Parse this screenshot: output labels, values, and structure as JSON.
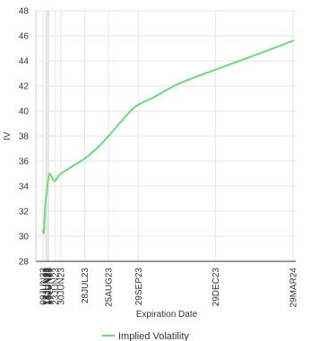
{
  "chart_data": {
    "type": "line",
    "xlabel": "Expiration Date",
    "ylabel": "IV",
    "ylim": [
      28,
      48
    ],
    "yticks": [
      28,
      30,
      32,
      34,
      36,
      38,
      40,
      42,
      44,
      46,
      48
    ],
    "grid": true,
    "legend_position": "bottom-center",
    "x_tick_labels": [
      {
        "label": "09JUN23",
        "date": "2023-06-09"
      },
      {
        "label": "12JUN23",
        "date": "2023-06-12"
      },
      {
        "label": "13JUN23",
        "date": "2023-06-13"
      },
      {
        "label": "14JUN23",
        "date": "2023-06-14"
      },
      {
        "label": "15JUN23",
        "date": "2023-06-15"
      },
      {
        "label": "16JUN23",
        "date": "2023-06-16"
      },
      {
        "label": "23JUN23",
        "date": "2023-06-23"
      },
      {
        "label": "30JUN23",
        "date": "2023-06-30"
      },
      {
        "label": "28JUL23",
        "date": "2023-07-28"
      },
      {
        "label": "25AUG23",
        "date": "2023-08-25"
      },
      {
        "label": "29SEP23",
        "date": "2023-09-29"
      },
      {
        "label": "29DEC23",
        "date": "2023-12-29"
      },
      {
        "label": "29MAR24",
        "date": "2024-03-29"
      }
    ],
    "series": [
      {
        "name": "Implied Volatility",
        "color": "#66e075",
        "points": [
          {
            "x": "2023-06-09",
            "y": 30.5
          },
          {
            "x": "2023-06-10",
            "y": 30.3
          },
          {
            "x": "2023-06-11",
            "y": 31.8
          },
          {
            "x": "2023-06-12",
            "y": 32.8
          },
          {
            "x": "2023-06-13",
            "y": 33.3
          },
          {
            "x": "2023-06-14",
            "y": 33.9
          },
          {
            "x": "2023-06-15",
            "y": 34.5
          },
          {
            "x": "2023-06-16",
            "y": 34.9
          },
          {
            "x": "2023-06-17",
            "y": 35.0
          },
          {
            "x": "2023-06-19",
            "y": 34.8
          },
          {
            "x": "2023-06-21",
            "y": 34.5
          },
          {
            "x": "2023-06-23",
            "y": 34.4
          },
          {
            "x": "2023-06-26",
            "y": 34.7
          },
          {
            "x": "2023-06-30",
            "y": 35.0
          },
          {
            "x": "2023-07-14",
            "y": 35.6
          },
          {
            "x": "2023-07-28",
            "y": 36.2
          },
          {
            "x": "2023-08-11",
            "y": 37.0
          },
          {
            "x": "2023-08-25",
            "y": 38.0
          },
          {
            "x": "2023-09-08",
            "y": 39.1
          },
          {
            "x": "2023-09-20",
            "y": 40.0
          },
          {
            "x": "2023-09-29",
            "y": 40.5
          },
          {
            "x": "2023-10-20",
            "y": 41.2
          },
          {
            "x": "2023-11-10",
            "y": 42.0
          },
          {
            "x": "2023-12-01",
            "y": 42.6
          },
          {
            "x": "2023-12-29",
            "y": 43.3
          },
          {
            "x": "2024-01-26",
            "y": 44.0
          },
          {
            "x": "2024-02-23",
            "y": 44.7
          },
          {
            "x": "2024-03-29",
            "y": 45.6
          }
        ]
      }
    ],
    "colors": {
      "line": "#66e075",
      "grid": "#e6e6e6",
      "axis": "#333333",
      "text": "#333333"
    }
  }
}
